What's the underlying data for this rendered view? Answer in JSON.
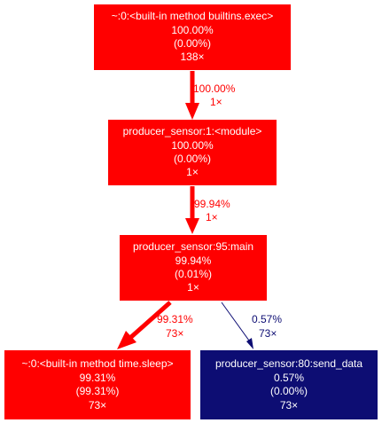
{
  "graph": {
    "nodes": [
      {
        "id": "exec",
        "color": "#ff0000",
        "lines": [
          "~:0:<built-in method builtins.exec>",
          "100.00%",
          "(0.00%)",
          "138×"
        ]
      },
      {
        "id": "module",
        "color": "#ff0000",
        "lines": [
          "producer_sensor:1:<module>",
          "100.00%",
          "(0.00%)",
          "1×"
        ]
      },
      {
        "id": "main",
        "color": "#ff0000",
        "lines": [
          "producer_sensor:95:main",
          "99.94%",
          "(0.01%)",
          "1×"
        ]
      },
      {
        "id": "sleep",
        "color": "#ff0000",
        "lines": [
          "~:0:<built-in method time.sleep>",
          "99.31%",
          "(99.31%)",
          "73×"
        ]
      },
      {
        "id": "send_data",
        "color": "#0d0d73",
        "lines": [
          "producer_sensor:80:send_data",
          "0.57%",
          "(0.00%)",
          "73×"
        ]
      }
    ],
    "edges": [
      {
        "id": "exec-module",
        "from": "exec",
        "to": "module",
        "color": "#ff0000",
        "label": [
          "100.00%",
          "1×"
        ]
      },
      {
        "id": "module-main",
        "from": "module",
        "to": "main",
        "color": "#ff0000",
        "label": [
          "99.94%",
          "1×"
        ]
      },
      {
        "id": "main-sleep",
        "from": "main",
        "to": "sleep",
        "color": "#ff0000",
        "label": [
          "99.31%",
          "73×"
        ]
      },
      {
        "id": "main-send_data",
        "from": "main",
        "to": "send_data",
        "color": "#0d0d73",
        "label": [
          "0.57%",
          "73×"
        ]
      }
    ]
  }
}
